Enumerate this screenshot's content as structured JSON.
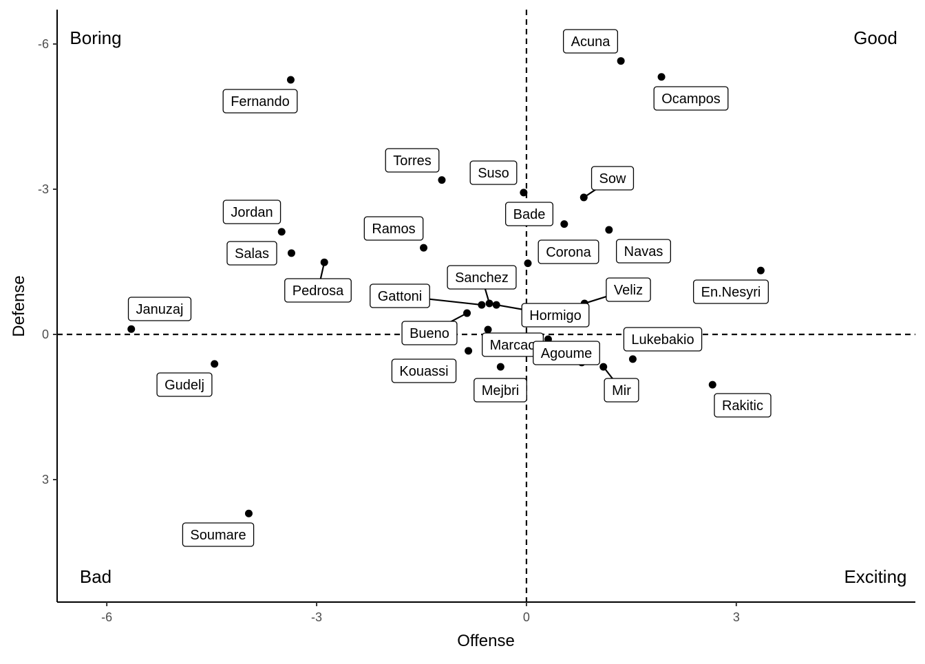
{
  "chart_data": {
    "type": "scatter",
    "xlabel": "Offense",
    "ylabel": "Defense",
    "xlim": [
      -6.71,
      5.56
    ],
    "ylim": [
      -6.71,
      5.53
    ],
    "y_reversed": true,
    "xticks": [
      -6,
      -3,
      0,
      3
    ],
    "yticks": [
      -6,
      -3,
      0,
      3
    ],
    "grid": false,
    "reference_lines": {
      "x": 0,
      "y": 0,
      "style": "dashed"
    },
    "quadrant_labels": {
      "top_left": "Boring",
      "top_right": "Good",
      "bottom_left": "Bad",
      "bottom_right": "Exciting"
    },
    "points": [
      {
        "label": "Acuna",
        "x": 1.35,
        "y": -5.65
      },
      {
        "label": "Ocampos",
        "x": 1.93,
        "y": -5.32
      },
      {
        "label": "Fernando",
        "x": -3.37,
        "y": -5.26
      },
      {
        "label": "Torres",
        "x": -1.21,
        "y": -3.19
      },
      {
        "label": "Suso",
        "x": -0.04,
        "y": -2.93
      },
      {
        "label": "Sow",
        "x": 0.82,
        "y": -2.83
      },
      {
        "label": "Bade",
        "x": 0.54,
        "y": -2.28
      },
      {
        "label": "Navas",
        "x": 1.18,
        "y": -2.16
      },
      {
        "label": "Jordan",
        "x": -3.5,
        "y": -2.12
      },
      {
        "label": "Salas",
        "x": -3.36,
        "y": -1.68
      },
      {
        "label": "Ramos",
        "x": -1.47,
        "y": -1.79
      },
      {
        "label": "Pedrosa",
        "x": -2.89,
        "y": -1.49
      },
      {
        "label": "Corona",
        "x": 0.02,
        "y": -1.47
      },
      {
        "label": "En.Nesyri",
        "x": 3.35,
        "y": -1.32
      },
      {
        "label": "Veliz",
        "x": 0.83,
        "y": -0.64
      },
      {
        "label": "Sanchez",
        "x": -0.53,
        "y": -0.64
      },
      {
        "label": "Gattoni",
        "x": -0.64,
        "y": -0.61
      },
      {
        "label": "Hormigo",
        "x": -0.43,
        "y": -0.61
      },
      {
        "label": "Januzaj",
        "x": -5.65,
        "y": -0.11
      },
      {
        "label": "Bueno",
        "x": -0.85,
        "y": -0.44
      },
      {
        "label": "Marcao",
        "x": -0.55,
        "y": -0.1
      },
      {
        "label": "",
        "x": 0.31,
        "y": 0.1
      },
      {
        "label": "Agoume",
        "x": 0.79,
        "y": 0.58
      },
      {
        "label": "Kouassi",
        "x": -0.83,
        "y": 0.34
      },
      {
        "label": "Lukebakio",
        "x": 1.52,
        "y": 0.51
      },
      {
        "label": "Mir",
        "x": 1.1,
        "y": 0.67
      },
      {
        "label": "Mejbri",
        "x": -0.37,
        "y": 0.67
      },
      {
        "label": "Gudelj",
        "x": -4.46,
        "y": 0.61
      },
      {
        "label": "Rakitic",
        "x": 2.66,
        "y": 1.04
      },
      {
        "label": "Soumare",
        "x": -3.97,
        "y": 3.7
      }
    ]
  }
}
